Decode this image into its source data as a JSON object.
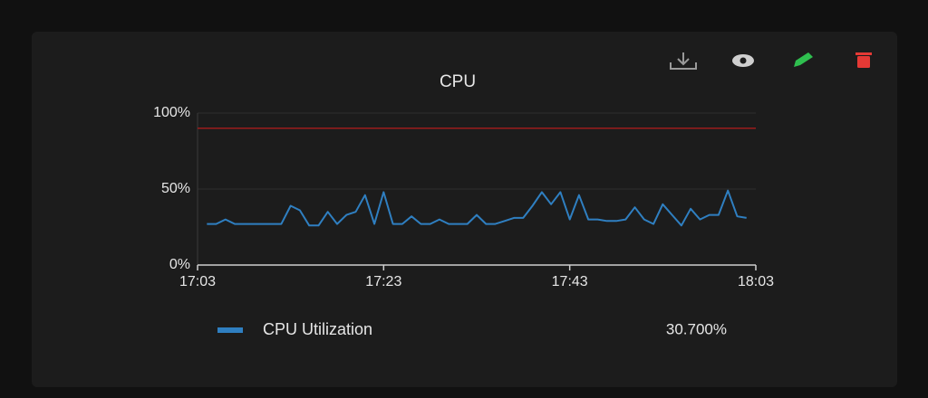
{
  "chart_data": {
    "type": "line",
    "title": "CPU",
    "x": [
      "17:04",
      "17:05",
      "17:06",
      "17:07",
      "17:08",
      "17:09",
      "17:10",
      "17:11",
      "17:12",
      "17:13",
      "17:14",
      "17:15",
      "17:16",
      "17:17",
      "17:18",
      "17:19",
      "17:20",
      "17:21",
      "17:22",
      "17:23",
      "17:24",
      "17:25",
      "17:26",
      "17:27",
      "17:28",
      "17:29",
      "17:30",
      "17:31",
      "17:32",
      "17:33",
      "17:34",
      "17:35",
      "17:36",
      "17:37",
      "17:38",
      "17:39",
      "17:40",
      "17:41",
      "17:42",
      "17:43",
      "17:44",
      "17:45",
      "17:46",
      "17:47",
      "17:48",
      "17:49",
      "17:50",
      "17:51",
      "17:52",
      "17:53",
      "17:54",
      "17:55",
      "17:56",
      "17:57",
      "17:58",
      "17:59",
      "18:00",
      "18:01",
      "18:02"
    ],
    "series": [
      {
        "name": "CPU Utilization",
        "color": "#2f7fc1",
        "summary": "30.700%",
        "values": [
          27,
          27,
          30,
          27,
          27,
          27,
          27,
          27,
          27,
          39,
          36,
          26,
          26,
          35,
          27,
          33,
          35,
          46,
          27,
          48,
          27,
          27,
          32,
          27,
          27,
          30,
          27,
          27,
          27,
          33,
          27,
          27,
          29,
          31,
          31,
          39,
          48,
          40,
          48,
          30,
          46,
          30,
          30,
          29,
          29,
          30,
          38,
          30,
          27,
          40,
          33,
          26,
          37,
          30,
          33,
          33,
          49,
          32,
          31
        ]
      }
    ],
    "xlim": [
      "17:03",
      "18:03"
    ],
    "xticks": [
      "17:03",
      "17:23",
      "17:43",
      "18:03"
    ],
    "ylim": [
      0,
      100
    ],
    "yticks": [
      {
        "value": 0,
        "label": "0%"
      },
      {
        "value": 50,
        "label": "50%"
      },
      {
        "value": 100,
        "label": "100%"
      }
    ],
    "grid": true,
    "reference_line": {
      "value": 90,
      "color": "#9b1c1c"
    }
  }
}
